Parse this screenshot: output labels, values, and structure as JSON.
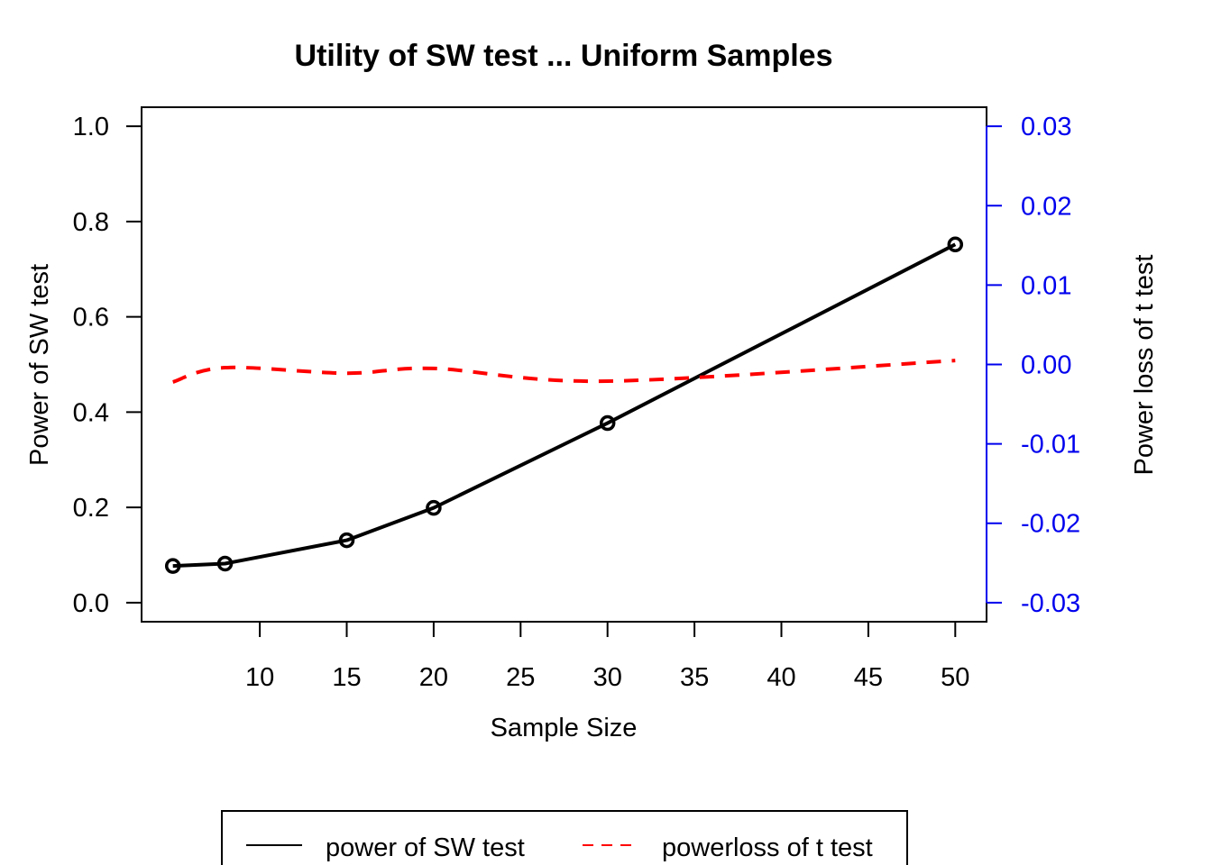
{
  "chart_data": {
    "type": "line",
    "title": "Utility of SW test ... Uniform Samples",
    "xlabel": "Sample Size",
    "ylabel_left": "Power of SW test",
    "ylabel_right": "Power loss of t test",
    "x_ticks": [
      10,
      15,
      20,
      25,
      30,
      35,
      40,
      45,
      50
    ],
    "x_tick_labels": [
      "10",
      "15",
      "20",
      "25",
      "30",
      "35",
      "40",
      "45",
      "50"
    ],
    "xlim": [
      3.2,
      51.8
    ],
    "y_left_ticks": [
      0.0,
      0.2,
      0.4,
      0.6,
      0.8,
      1.0
    ],
    "y_left_tick_labels": [
      "0.0",
      "0.2",
      "0.4",
      "0.6",
      "0.8",
      "1.0"
    ],
    "ylim_left": [
      -0.04,
      1.04
    ],
    "y_right_ticks": [
      -0.03,
      -0.02,
      -0.01,
      0.0,
      0.01,
      0.02,
      0.03
    ],
    "y_right_tick_labels": [
      "-0.03",
      "-0.02",
      "-0.01",
      "0.00",
      "0.01",
      "0.02",
      "0.03"
    ],
    "ylim_right": [
      -0.0324,
      0.0324
    ],
    "series": [
      {
        "name": "power of SW test",
        "axis": "left",
        "color": "#000000",
        "style": "solid",
        "markers": "open-circle",
        "x": [
          5,
          8,
          15,
          20,
          30,
          50
        ],
        "y": [
          0.077,
          0.082,
          0.131,
          0.199,
          0.377,
          0.752
        ]
      },
      {
        "name": "powerloss of t test",
        "axis": "right",
        "color": "#ff0000",
        "style": "dashed",
        "markers": "none",
        "x": [
          5,
          8,
          15,
          20,
          30,
          50
        ],
        "y": [
          -0.0022,
          -0.0004,
          -0.0011,
          -0.0005,
          -0.0021,
          0.0005
        ]
      }
    ],
    "right_axis_color": "#0000ee",
    "legend": {
      "placement": "bottom-center",
      "entries": [
        "power of SW test",
        "powerloss of t test"
      ]
    },
    "grid": false
  }
}
